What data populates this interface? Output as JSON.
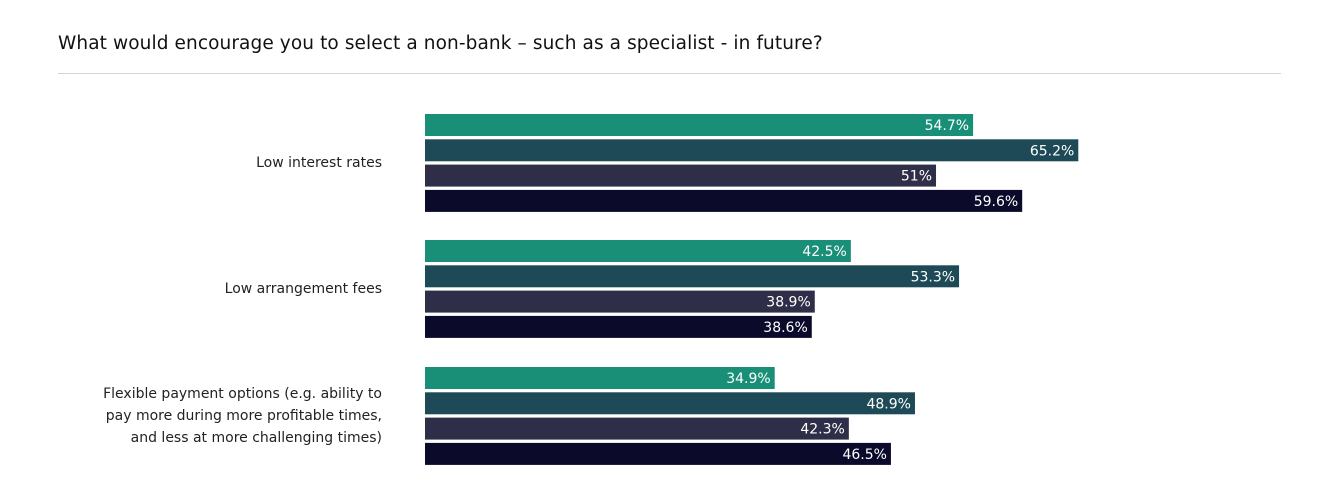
{
  "title": "What would encourage you to select a non-bank – such as a specialist - in future?",
  "colors": {
    "series": [
      "#1a8f78",
      "#1e4a57",
      "#2e2e48",
      "#0b0a2b"
    ],
    "divider": "#d4d4d4",
    "value_label": "#ffffff"
  },
  "chart_data": {
    "type": "bar",
    "orientation": "horizontal",
    "categories": [
      [
        "Low interest rates"
      ],
      [
        "Low arrangement fees"
      ],
      [
        "Flexible payment options (e.g. ability to",
        "pay more during more profitable times,",
        "and less at more challenging times)"
      ]
    ],
    "series": [
      {
        "values": [
          54.7,
          42.5,
          34.9
        ],
        "labels": [
          "54.7%",
          "42.5%",
          "34.9%"
        ]
      },
      {
        "values": [
          65.2,
          53.3,
          48.9
        ],
        "labels": [
          "65.2%",
          "53.3%",
          "48.9%"
        ]
      },
      {
        "values": [
          51,
          38.9,
          42.3
        ],
        "labels": [
          "51%",
          "38.9%",
          "42.3%"
        ]
      },
      {
        "values": [
          59.6,
          38.6,
          46.5
        ],
        "labels": [
          "59.6%",
          "38.6%",
          "46.5%"
        ]
      }
    ],
    "xlim": [
      0,
      100
    ],
    "grid": false,
    "legend": "none",
    "value_labels": "inside-end"
  }
}
